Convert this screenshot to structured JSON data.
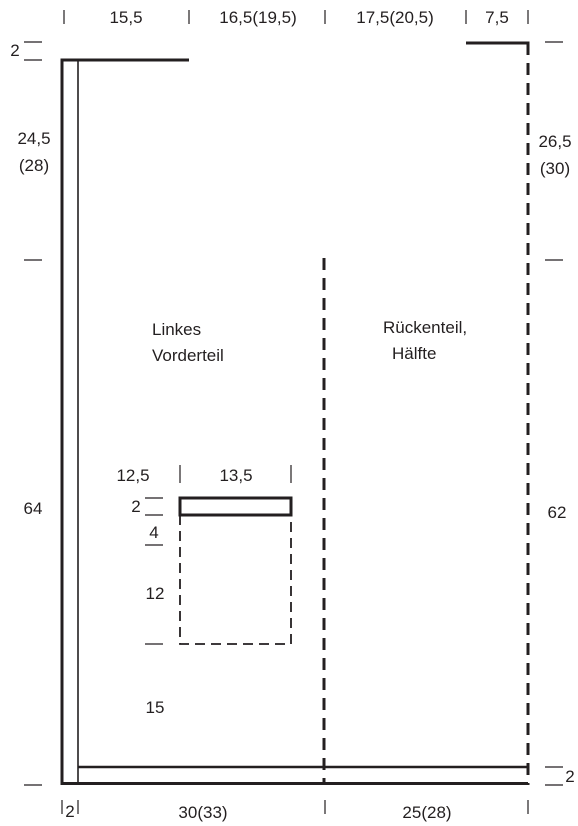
{
  "top_dimensions": [
    "15,5",
    "16,5(19,5)",
    "17,5(20,5)",
    "7,5"
  ],
  "bottom_dimensions": [
    "2",
    "30(33)",
    "25(28)"
  ],
  "left_dimensions": {
    "top_edge": "2",
    "upper_a": "24,5",
    "upper_b": "(28)",
    "lower": "64"
  },
  "right_dimensions": {
    "upper_a": "26,5",
    "upper_b": "(30)",
    "lower": "62",
    "bottom_edge": "2"
  },
  "labels": {
    "front_line1": "Linkes",
    "front_line2": "Vorderteil",
    "back_line1": "Rückenteil,",
    "back_line2": "Hälfte"
  },
  "pocket_dimensions": {
    "offset": "12,5",
    "width": "13,5",
    "top": "2",
    "band": "4",
    "height": "12",
    "bottom": "15"
  }
}
